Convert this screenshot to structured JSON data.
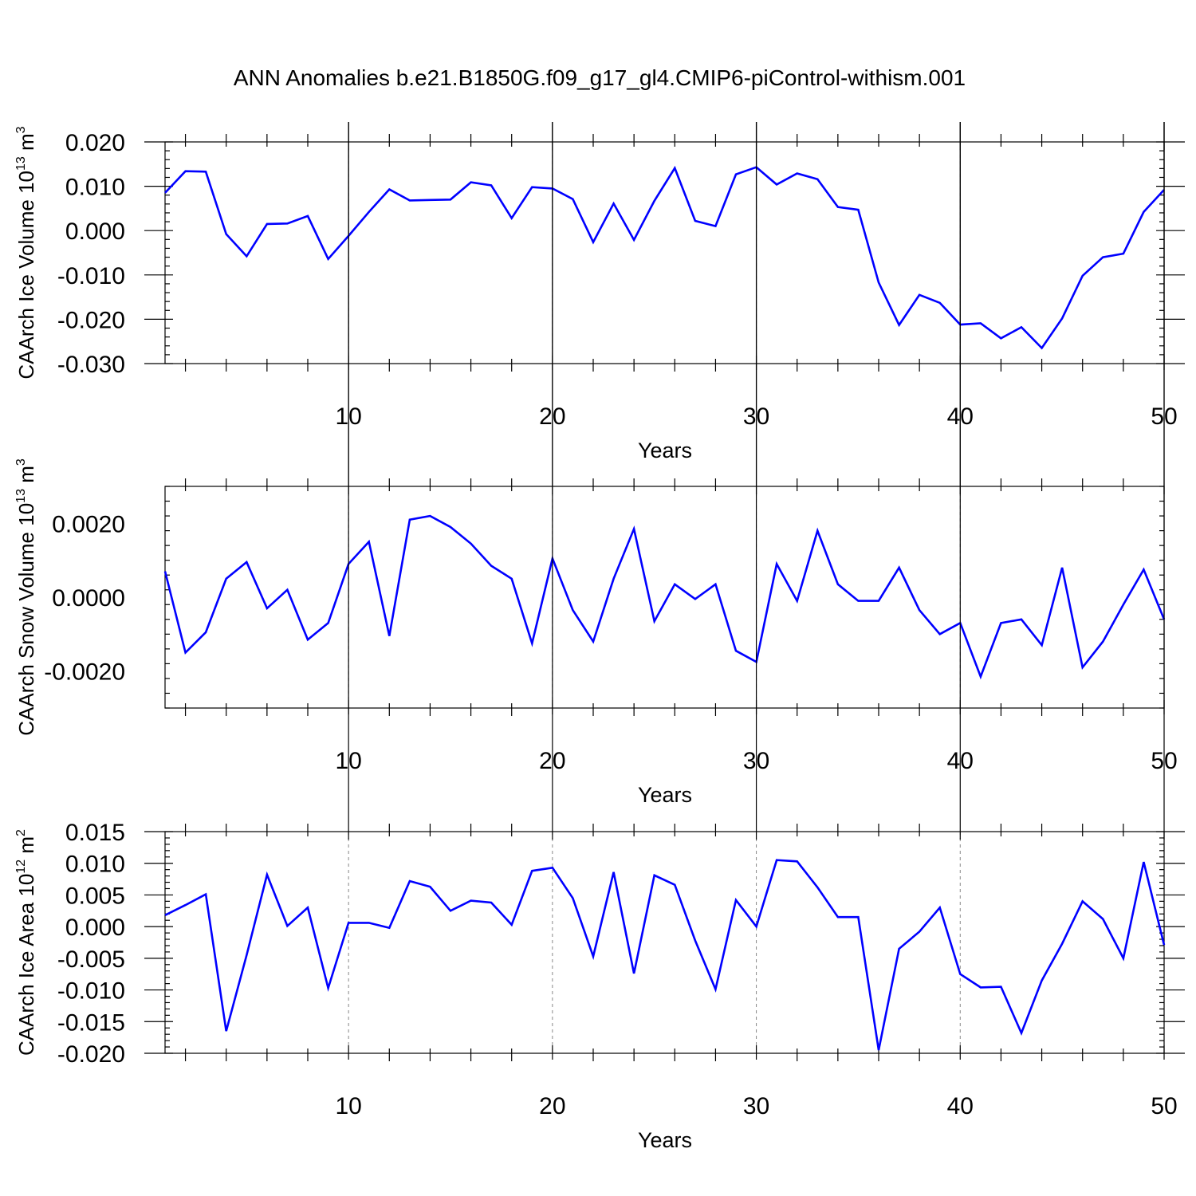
{
  "title": "ANN Anomalies b.e21.B1850G.f09_g17_gl4.CMIP6-piControl-withism.001",
  "colors": {
    "line": "#0000ff",
    "axis": "#000000",
    "grid": "#888888",
    "background": "#ffffff"
  },
  "chart_data": [
    {
      "type": "line",
      "xlabel": "Years",
      "ylabel": {
        "text": "CAArch Ice Volume 10",
        "exp": "13",
        "unit": " m",
        "unit_exp": "3"
      },
      "xlim": [
        1,
        50
      ],
      "ylim": [
        -0.03,
        0.02
      ],
      "xticks": [
        10,
        20,
        30,
        40,
        50
      ],
      "yticks": [
        "0.020",
        "0.010",
        "0.000",
        "-0.010",
        "-0.020",
        "-0.030"
      ],
      "ytick_values": [
        0.02,
        0.01,
        0.0,
        -0.01,
        -0.02,
        -0.03
      ],
      "grid_x": [
        10,
        20,
        30,
        40
      ],
      "x": [
        1,
        2,
        3,
        4,
        5,
        6,
        7,
        8,
        9,
        10,
        11,
        12,
        13,
        14,
        15,
        16,
        17,
        18,
        19,
        20,
        21,
        22,
        23,
        24,
        25,
        26,
        27,
        28,
        29,
        30,
        31,
        32,
        33,
        34,
        35,
        36,
        37,
        38,
        39,
        40,
        41,
        42,
        43,
        44,
        45,
        46,
        47,
        48,
        49,
        50
      ],
      "series": [
        {
          "values": [
            0.0085,
            0.0134,
            0.0133,
            -0.0008,
            -0.0058,
            0.0015,
            0.0016,
            0.0033,
            -0.0064,
            -0.0012,
            0.0042,
            0.0093,
            0.0068,
            0.0069,
            0.007,
            0.0109,
            0.0102,
            0.0028,
            0.0098,
            0.0095,
            0.0071,
            -0.0026,
            0.0061,
            -0.0021,
            0.0067,
            0.0141,
            0.0022,
            0.001,
            0.0127,
            0.0143,
            0.0104,
            0.0129,
            0.0116,
            0.0053,
            0.0047,
            -0.0117,
            -0.0213,
            -0.0145,
            -0.0163,
            -0.0212,
            -0.0209,
            -0.0243,
            -0.0218,
            -0.0265,
            -0.0198,
            -0.0102,
            -0.006,
            -0.0052,
            0.0042,
            0.0092
          ]
        }
      ]
    },
    {
      "type": "line",
      "xlabel": "Years",
      "ylabel": {
        "text": "CAArch Snow Volume 10",
        "exp": "13",
        "unit": " m",
        "unit_exp": "3"
      },
      "xlim": [
        1,
        50
      ],
      "ylim": [
        -0.003,
        0.003
      ],
      "xticks": [
        10,
        20,
        30,
        40,
        50
      ],
      "yticks": [
        "0.0020",
        "0.0000",
        "-0.0020"
      ],
      "ytick_values": [
        0.002,
        0.0,
        -0.002
      ],
      "grid_x": [
        10,
        20,
        30,
        40
      ],
      "x": [
        1,
        2,
        3,
        4,
        5,
        6,
        7,
        8,
        9,
        10,
        11,
        12,
        13,
        14,
        15,
        16,
        17,
        18,
        19,
        20,
        21,
        22,
        23,
        24,
        25,
        26,
        27,
        28,
        29,
        30,
        31,
        32,
        33,
        34,
        35,
        36,
        37,
        38,
        39,
        40,
        41,
        42,
        43,
        44,
        45,
        46,
        47,
        48,
        49,
        50
      ],
      "series": [
        {
          "values": [
            0.0007,
            -0.0015,
            -0.00095,
            0.0005,
            0.00095,
            -0.0003,
            0.0002,
            -0.00115,
            -0.0007,
            0.0009,
            0.0015,
            -0.00105,
            0.0021,
            0.0022,
            0.0019,
            0.00145,
            0.00085,
            0.0005,
            -0.00125,
            0.00105,
            -0.00035,
            -0.0012,
            0.0005,
            0.00185,
            -0.00065,
            0.00035,
            -5e-05,
            0.00035,
            -0.00145,
            -0.00175,
            0.0009,
            -0.0001,
            0.0018,
            0.00035,
            -0.0001,
            -0.0001,
            0.0008,
            -0.00035,
            -0.001,
            -0.0007,
            -0.00215,
            -0.0007,
            -0.0006,
            -0.0013,
            0.0008,
            -0.0019,
            -0.0012,
            -0.0002,
            0.00075,
            -0.0006
          ]
        }
      ]
    },
    {
      "type": "line",
      "xlabel": "Years",
      "ylabel": {
        "text": "CAArch Ice Area 10",
        "exp": "12",
        "unit": " m",
        "unit_exp": "2"
      },
      "xlim": [
        1,
        50
      ],
      "ylim": [
        -0.02,
        0.015
      ],
      "xticks": [
        10,
        20,
        30,
        40,
        50
      ],
      "yticks": [
        "0.015",
        "0.010",
        "0.005",
        "0.000",
        "-0.005",
        "-0.010",
        "-0.015",
        "-0.020"
      ],
      "ytick_values": [
        0.015,
        0.01,
        0.005,
        0.0,
        -0.005,
        -0.01,
        -0.015,
        -0.02
      ],
      "grid_x": [
        10,
        20,
        30,
        40
      ],
      "x": [
        1,
        2,
        3,
        4,
        5,
        6,
        7,
        8,
        9,
        10,
        11,
        12,
        13,
        14,
        15,
        16,
        17,
        18,
        19,
        20,
        21,
        22,
        23,
        24,
        25,
        26,
        27,
        28,
        29,
        30,
        31,
        32,
        33,
        34,
        35,
        36,
        37,
        38,
        39,
        40,
        41,
        42,
        43,
        44,
        45,
        46,
        47,
        48,
        49,
        50
      ],
      "series": [
        {
          "values": [
            0.0018,
            0.0034,
            0.0051,
            -0.0165,
            -0.0045,
            0.0082,
            0.0001,
            0.003,
            -0.0097,
            0.0006,
            0.0006,
            -0.0002,
            0.0072,
            0.0063,
            0.0025,
            0.0041,
            0.0038,
            0.0003,
            0.0088,
            0.0093,
            0.0045,
            -0.0047,
            0.0086,
            -0.0074,
            0.0081,
            0.0066,
            -0.0022,
            -0.0099,
            0.0042,
            0.0,
            0.0105,
            0.0103,
            0.0062,
            0.0015,
            0.0015,
            -0.0195,
            -0.0035,
            -0.0008,
            0.003,
            -0.0075,
            -0.0096,
            -0.0095,
            -0.0168,
            -0.0085,
            -0.0027,
            0.004,
            0.0012,
            -0.005,
            0.0102,
            -0.0029
          ]
        }
      ]
    }
  ]
}
